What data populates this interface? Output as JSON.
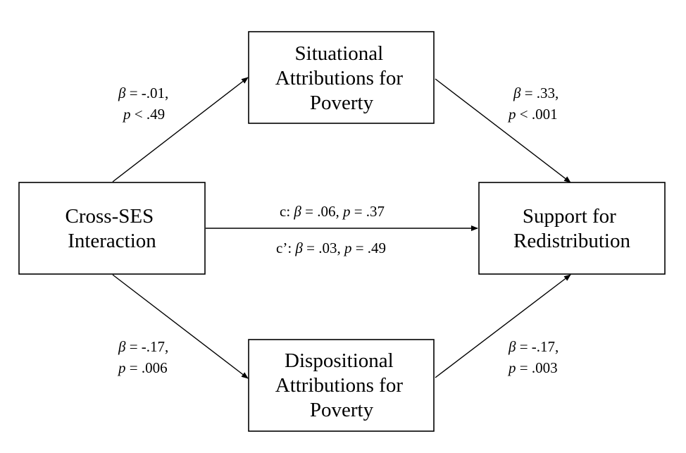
{
  "nodes": {
    "situational": {
      "lines": [
        "Situational",
        "Attributions for",
        "Poverty"
      ]
    },
    "cross_ses": {
      "lines": [
        "Cross-SES",
        "Interaction"
      ]
    },
    "support": {
      "lines": [
        "Support for",
        "Redistribution"
      ]
    },
    "dispositional": {
      "lines": [
        "Dispositional",
        "Attributions for",
        "Poverty"
      ]
    }
  },
  "paths": {
    "a_situational": {
      "beta_symbol": "β",
      "beta_value": " = -.01,",
      "p_symbol": "p",
      "p_value": " < .49"
    },
    "b_situational": {
      "beta_symbol": "β",
      "beta_value": " = .33,",
      "p_symbol": "p",
      "p_value": " < .001"
    },
    "a_dispositional": {
      "beta_symbol": "β",
      "beta_value": " = -.17,",
      "p_symbol": "p",
      "p_value": " = .006"
    },
    "b_dispositional": {
      "beta_symbol": "β",
      "beta_value": " = -.17,",
      "p_symbol": "p",
      "p_value": " = .003"
    },
    "c_total": {
      "prefix": "c: ",
      "beta_symbol": "β",
      "beta_value": " = .06,  ",
      "p_symbol": "p",
      "p_value": " = .37"
    },
    "c_direct": {
      "prefix": "c’: ",
      "beta_symbol": "β",
      "beta_value": " = .03,  ",
      "p_symbol": "p",
      "p_value": " = .49"
    }
  }
}
